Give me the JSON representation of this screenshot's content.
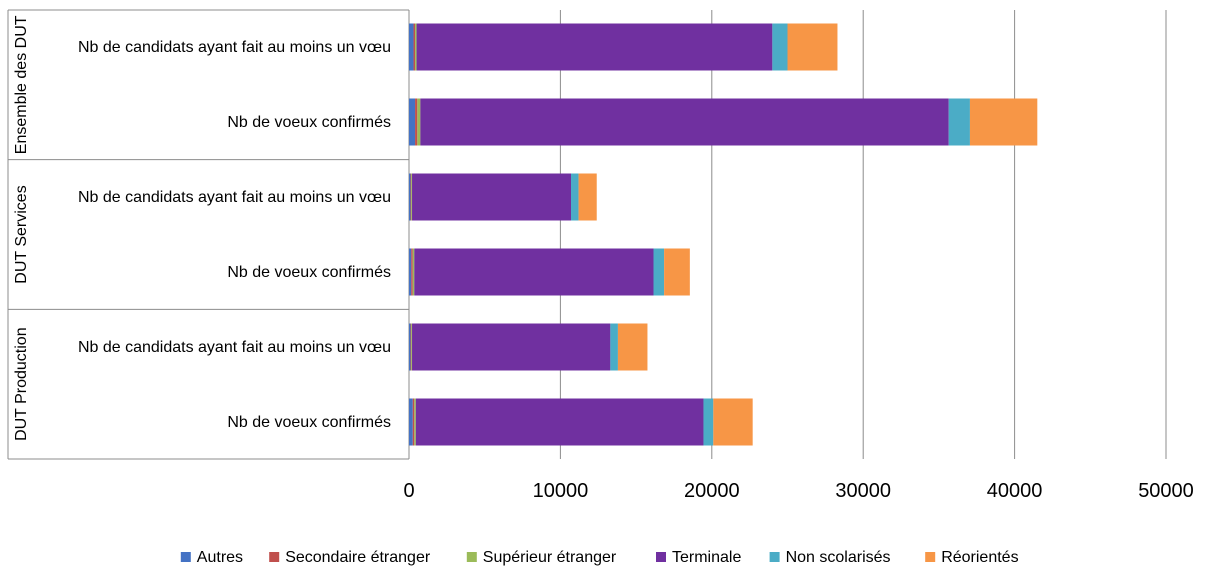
{
  "chart_data": {
    "type": "bar",
    "orientation": "horizontal",
    "stacked": true,
    "title": "",
    "xlabel": "",
    "ylabel": "",
    "xlim": [
      0,
      50000
    ],
    "x_ticks": [
      "0",
      "10000",
      "20000",
      "30000",
      "40000",
      "50000"
    ],
    "grid": true,
    "legend_position": "bottom",
    "groups": [
      {
        "label": "Ensemble des DUT",
        "categories": [
          "Nb de candidats ayant fait au moins un vœu",
          "Nb de voeux confirmés"
        ]
      },
      {
        "label": "DUT Services",
        "categories": [
          "Nb de candidats ayant fait  au moins un vœu",
          "Nb de voeux confirmés"
        ]
      },
      {
        "label": "DUT Production",
        "categories": [
          "Nb de candidats ayant fait au moins un vœu",
          "Nb de voeux confirmés"
        ]
      }
    ],
    "series": [
      {
        "name": "Autres",
        "color": "#4472C4",
        "values": [
          300,
          400,
          100,
          150,
          100,
          250
        ]
      },
      {
        "name": "Secondaire étranger",
        "color": "#C0504D",
        "values": [
          100,
          150,
          50,
          100,
          50,
          100
        ]
      },
      {
        "name": "Supérieur étranger",
        "color": "#9BBB59",
        "values": [
          100,
          200,
          50,
          100,
          50,
          100
        ]
      },
      {
        "name": "Terminale",
        "color": "#7030A0",
        "values": [
          23500,
          34900,
          10500,
          15800,
          13100,
          19000
        ]
      },
      {
        "name": "Non scolarisés",
        "color": "#4BACC6",
        "values": [
          1000,
          1400,
          500,
          700,
          500,
          650
        ]
      },
      {
        "name": "Réorientés",
        "color": "#F79646",
        "values": [
          3300,
          4450,
          1200,
          1700,
          1950,
          2600
        ]
      }
    ]
  }
}
